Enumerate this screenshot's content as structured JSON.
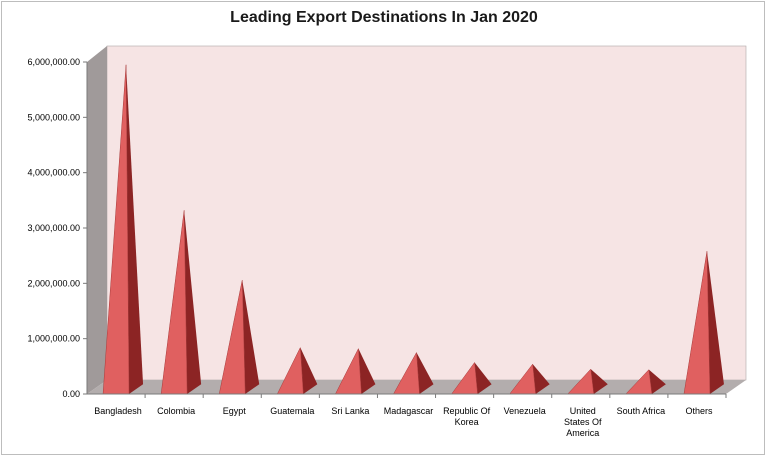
{
  "chart_data": {
    "type": "bar",
    "title": "Leading Export Destinations In Jan 2020",
    "xlabel": "",
    "ylabel": "",
    "ylim": [
      0,
      6000000
    ],
    "yticks": [
      "0.00",
      "1,000,000.00",
      "2,000,000.00",
      "3,000,000.00",
      "4,000,000.00",
      "5,000,000.00",
      "6,000,000.00"
    ],
    "categories": [
      [
        "Bangladesh"
      ],
      [
        "Colombia"
      ],
      [
        "Egypt"
      ],
      [
        "Guatemala"
      ],
      [
        "Sri Lanka"
      ],
      [
        "Madagascar"
      ],
      [
        "Republic Of",
        "Korea"
      ],
      [
        "Venezuela"
      ],
      [
        "United",
        "States Of",
        "America"
      ],
      [
        "South Africa"
      ],
      [
        "Others"
      ]
    ],
    "values": [
      5950000,
      3320000,
      2060000,
      840000,
      820000,
      750000,
      570000,
      540000,
      450000,
      440000,
      2580000
    ],
    "grid": false,
    "legend": "none",
    "colors": {
      "wall": "#f6e4e4",
      "side_wall": "#a09a9a",
      "floor": "#b3adad",
      "pyramid_light": "#e06060",
      "pyramid_dark": "#8c2424"
    }
  }
}
